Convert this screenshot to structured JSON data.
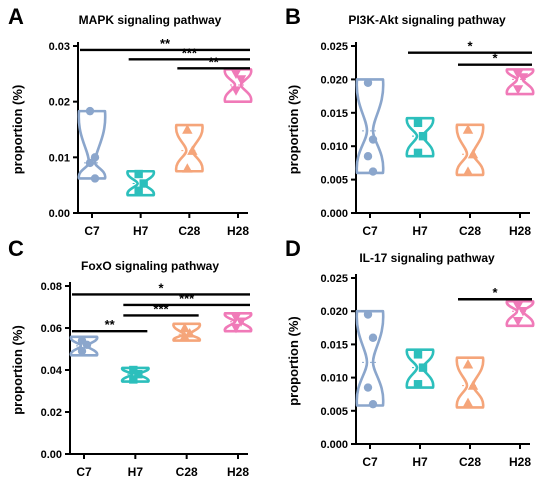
{
  "colors": {
    "C7": "#8ba6cc",
    "H7": "#2cbfbc",
    "C28": "#f5a57a",
    "H28": "#f07ab8",
    "axis": "#000000"
  },
  "chart_data": [
    {
      "type": "violin",
      "letter": "A",
      "title": "MAPK signaling pathway",
      "ylabel": "proportion (%)",
      "categories": [
        "C7",
        "H7",
        "C28",
        "H28"
      ],
      "ylim": [
        0,
        0.03
      ],
      "yticks": [
        0.0,
        0.01,
        0.02,
        0.03
      ],
      "ytick_labels": [
        "0.00",
        "0.01",
        "0.02",
        "0.03"
      ],
      "series": [
        {
          "category": "C7",
          "min": 0.0062,
          "max": 0.0183,
          "median": 0.009,
          "points": [
            0.0183,
            0.01,
            0.009,
            0.0062
          ],
          "marker": "circle"
        },
        {
          "category": "H7",
          "min": 0.0032,
          "max": 0.0075,
          "median": 0.0053,
          "points": [
            0.007,
            0.0053,
            0.004
          ],
          "marker": "square"
        },
        {
          "category": "C28",
          "min": 0.0075,
          "max": 0.0158,
          "median": 0.0112,
          "points": [
            0.015,
            0.0112,
            0.008
          ],
          "marker": "triangle"
        },
        {
          "category": "H28",
          "min": 0.02,
          "max": 0.0258,
          "median": 0.023,
          "points": [
            0.025,
            0.024,
            0.022
          ],
          "marker": "inverted-triangle"
        }
      ],
      "significance": [
        {
          "from": "C7",
          "to": "H28",
          "label": "**",
          "y": 0.0293
        },
        {
          "from": "H7",
          "to": "H28",
          "label": "***",
          "y": 0.0276
        },
        {
          "from": "C28",
          "to": "H28",
          "label": "**",
          "y": 0.026
        }
      ]
    },
    {
      "type": "violin",
      "letter": "B",
      "title": "PI3K-Akt signaling pathway",
      "ylabel": "proportion (%)",
      "categories": [
        "C7",
        "H7",
        "C28",
        "H28"
      ],
      "ylim": [
        0,
        0.025
      ],
      "yticks": [
        0.0,
        0.005,
        0.01,
        0.015,
        0.02,
        0.025
      ],
      "ytick_labels": [
        "0.000",
        "0.005",
        "0.010",
        "0.015",
        "0.020",
        "0.025"
      ],
      "series": [
        {
          "category": "C7",
          "min": 0.006,
          "max": 0.02,
          "median": 0.0123,
          "points": [
            0.0195,
            0.011,
            0.0085,
            0.0062
          ],
          "marker": "circle"
        },
        {
          "category": "H7",
          "min": 0.0085,
          "max": 0.0142,
          "median": 0.0115,
          "points": [
            0.0135,
            0.0115,
            0.009
          ],
          "marker": "square"
        },
        {
          "category": "C28",
          "min": 0.0057,
          "max": 0.0132,
          "median": 0.0088,
          "points": [
            0.0125,
            0.0088,
            0.0062
          ],
          "marker": "triangle"
        },
        {
          "category": "H28",
          "min": 0.0178,
          "max": 0.0215,
          "median": 0.02,
          "points": [
            0.0208,
            0.0203,
            0.0185
          ],
          "marker": "inverted-triangle"
        }
      ],
      "significance": [
        {
          "from": "H7",
          "to": "H28",
          "label": "*",
          "y": 0.024
        },
        {
          "from": "C28",
          "to": "H28",
          "label": "*",
          "y": 0.0222
        }
      ]
    },
    {
      "type": "violin",
      "letter": "C",
      "title": "FoxO signaling pathway",
      "ylabel": "proportion (%)",
      "categories": [
        "C7",
        "H7",
        "C28",
        "H28"
      ],
      "ylim": [
        0,
        0.08
      ],
      "yticks": [
        0.0,
        0.02,
        0.04,
        0.06,
        0.08
      ],
      "ytick_labels": [
        "0.00",
        "0.02",
        "0.04",
        "0.06",
        "0.08"
      ],
      "series": [
        {
          "category": "C7",
          "min": 0.047,
          "max": 0.0558,
          "median": 0.0515,
          "points": [
            0.054,
            0.052,
            0.049
          ],
          "marker": "circle"
        },
        {
          "category": "H7",
          "min": 0.0345,
          "max": 0.041,
          "median": 0.038,
          "points": [
            0.04,
            0.038,
            0.0355
          ],
          "marker": "square"
        },
        {
          "category": "C28",
          "min": 0.054,
          "max": 0.062,
          "median": 0.057,
          "points": [
            0.06,
            0.0575,
            0.056
          ],
          "marker": "triangle"
        },
        {
          "category": "H28",
          "min": 0.0585,
          "max": 0.067,
          "median": 0.063,
          "points": [
            0.065,
            0.063,
            0.06
          ],
          "marker": "inverted-triangle"
        }
      ],
      "significance": [
        {
          "from": "C7",
          "to": "H28",
          "label": "*",
          "y": 0.076
        },
        {
          "from": "H7",
          "to": "H28",
          "label": "***",
          "y": 0.071
        },
        {
          "from": "H7",
          "to": "C28",
          "label": "***",
          "y": 0.066
        },
        {
          "from": "C7",
          "to": "H7",
          "label": "**",
          "y": 0.0585
        }
      ]
    },
    {
      "type": "violin",
      "letter": "D",
      "title": "IL-17 signaling pathway",
      "ylabel": "proportion (%)",
      "categories": [
        "C7",
        "H7",
        "C28",
        "H28"
      ],
      "ylim": [
        0,
        0.025
      ],
      "yticks": [
        0.0,
        0.005,
        0.01,
        0.015,
        0.02,
        0.025
      ],
      "ytick_labels": [
        "0.000",
        "0.005",
        "0.010",
        "0.015",
        "0.020",
        "0.025"
      ],
      "series": [
        {
          "category": "C7",
          "min": 0.0058,
          "max": 0.02,
          "median": 0.0123,
          "points": [
            0.0195,
            0.016,
            0.0085,
            0.006
          ],
          "marker": "circle"
        },
        {
          "category": "H7",
          "min": 0.0085,
          "max": 0.0142,
          "median": 0.0115,
          "points": [
            0.0135,
            0.0115,
            0.009
          ],
          "marker": "square"
        },
        {
          "category": "C28",
          "min": 0.0055,
          "max": 0.013,
          "median": 0.0088,
          "points": [
            0.012,
            0.0088,
            0.0062
          ],
          "marker": "triangle"
        },
        {
          "category": "H28",
          "min": 0.0178,
          "max": 0.0215,
          "median": 0.02,
          "points": [
            0.0208,
            0.02,
            0.0185
          ],
          "marker": "inverted-triangle"
        }
      ],
      "significance": [
        {
          "from": "C28",
          "to": "H28",
          "label": "*",
          "y": 0.0218
        }
      ]
    }
  ]
}
